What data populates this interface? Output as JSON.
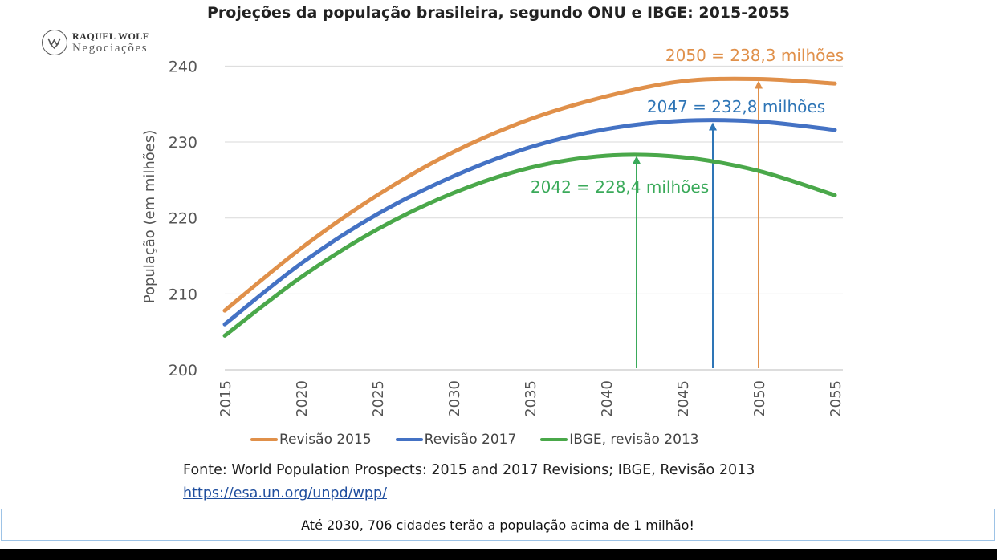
{
  "chart_data": {
    "type": "line",
    "title": "Projeções da população brasileira, segundo ONU e IBGE: 2015-2055",
    "xlabel": "",
    "ylabel": "População (em milhões)",
    "x": [
      2015,
      2020,
      2025,
      2030,
      2035,
      2040,
      2045,
      2050,
      2055
    ],
    "xticks": [
      "2015",
      "2020",
      "2025",
      "2030",
      "2035",
      "2040",
      "2045",
      "2050",
      "2055"
    ],
    "yticks": [
      "200",
      "210",
      "220",
      "230",
      "240"
    ],
    "ylim": [
      200,
      243
    ],
    "xlim": [
      2015,
      2055
    ],
    "grid": "horizontal",
    "legend_position": "bottom",
    "series": [
      {
        "name": "Revisão 2015",
        "color": "#e0904a",
        "values": [
          207.8,
          216.0,
          223.0,
          228.7,
          233.0,
          236.0,
          238.0,
          238.3,
          237.7
        ]
      },
      {
        "name": "Revisão 2017",
        "color": "#4472c4",
        "values": [
          206.0,
          214.0,
          220.5,
          225.5,
          229.3,
          231.7,
          232.8,
          232.7,
          231.6
        ]
      },
      {
        "name": "IBGE, revisão 2013",
        "color": "#4aa84a",
        "values": [
          204.5,
          212.2,
          218.5,
          223.3,
          226.6,
          228.2,
          228.0,
          226.2,
          223.0
        ]
      }
    ],
    "annotations": [
      {
        "text": "2050 = 238,3 milhões",
        "x": 2050,
        "y": 238.3,
        "color": "#e0904a"
      },
      {
        "text": "2047 = 232,8 milhões",
        "x": 2047,
        "y": 232.8,
        "color": "#2e75b6"
      },
      {
        "text": "2042 = 228,4 milhões",
        "x": 2042,
        "y": 228.4,
        "color": "#3aaa5a"
      }
    ]
  },
  "logo": {
    "name": "RAQUEL WOLF",
    "subtitle": "Negociações"
  },
  "source_text": "Fonte: World Population Prospects: 2015 and 2017 Revisions; IBGE, Revisão 2013",
  "source_link": "https://esa.un.org/unpd/wpp/",
  "banner_text": "Até 2030, 706 cidades terão a população acima de 1 milhão!"
}
